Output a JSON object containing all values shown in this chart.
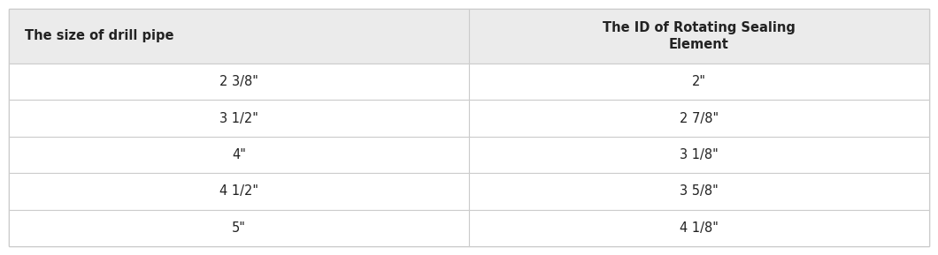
{
  "col1_header": "The size of drill pipe",
  "col2_header": "The ID of Rotating Sealing\nElement",
  "rows": [
    [
      "2 3/8\"",
      "2\""
    ],
    [
      "3 1/2\"",
      "2 7/8\""
    ],
    [
      "4\"",
      "3 1/8\""
    ],
    [
      "4 1/2\"",
      "3 5/8\""
    ],
    [
      "5\"",
      "4 1/8\""
    ]
  ],
  "header_bg": "#ebebeb",
  "row_bg": "#ffffff",
  "outer_border_color": "#bbbbbb",
  "inner_border_color": "#cccccc",
  "header_font_size": 10.5,
  "cell_font_size": 10.5,
  "header_font_weight": "bold",
  "cell_font_weight": "normal",
  "text_color": "#222222",
  "fig_bg": "#ffffff",
  "col1_header_align": "left",
  "col2_header_align": "center"
}
